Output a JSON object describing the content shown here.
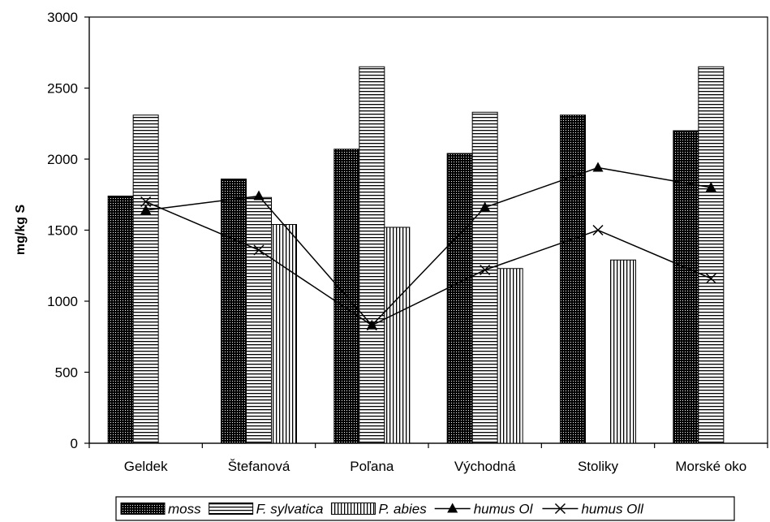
{
  "chart_data": {
    "type": "bar",
    "title": "",
    "xlabel": "",
    "ylabel": "mg/kg S",
    "ylim": [
      0,
      3000
    ],
    "yticks": [
      0,
      500,
      1000,
      1500,
      2000,
      2500,
      3000
    ],
    "grid": false,
    "legend_position": "bottom",
    "categories": [
      "Geldek",
      "Štefanová",
      "Poľana",
      "Východná",
      "Stoliky",
      "Morské oko"
    ],
    "bar_series": [
      {
        "name": "moss",
        "pattern": "dots",
        "values": [
          1740,
          1860,
          2070,
          2040,
          2310,
          2200
        ]
      },
      {
        "name": "F. sylvatica",
        "pattern": "horizontal-lines",
        "values": [
          2310,
          1730,
          2650,
          2330,
          null,
          2650
        ]
      },
      {
        "name": "P. abies",
        "pattern": "vertical-lines",
        "values": [
          null,
          1540,
          1520,
          1230,
          1290,
          null
        ]
      }
    ],
    "line_series": [
      {
        "name": "humus Ol",
        "marker": "triangle",
        "values": [
          1640,
          1740,
          830,
          1660,
          1940,
          1800
        ]
      },
      {
        "name": "humus Oll",
        "marker": "x",
        "values": [
          1700,
          1360,
          830,
          1220,
          1500,
          1160
        ]
      }
    ],
    "colors": {
      "ink": "#000000",
      "background": "#ffffff"
    }
  }
}
